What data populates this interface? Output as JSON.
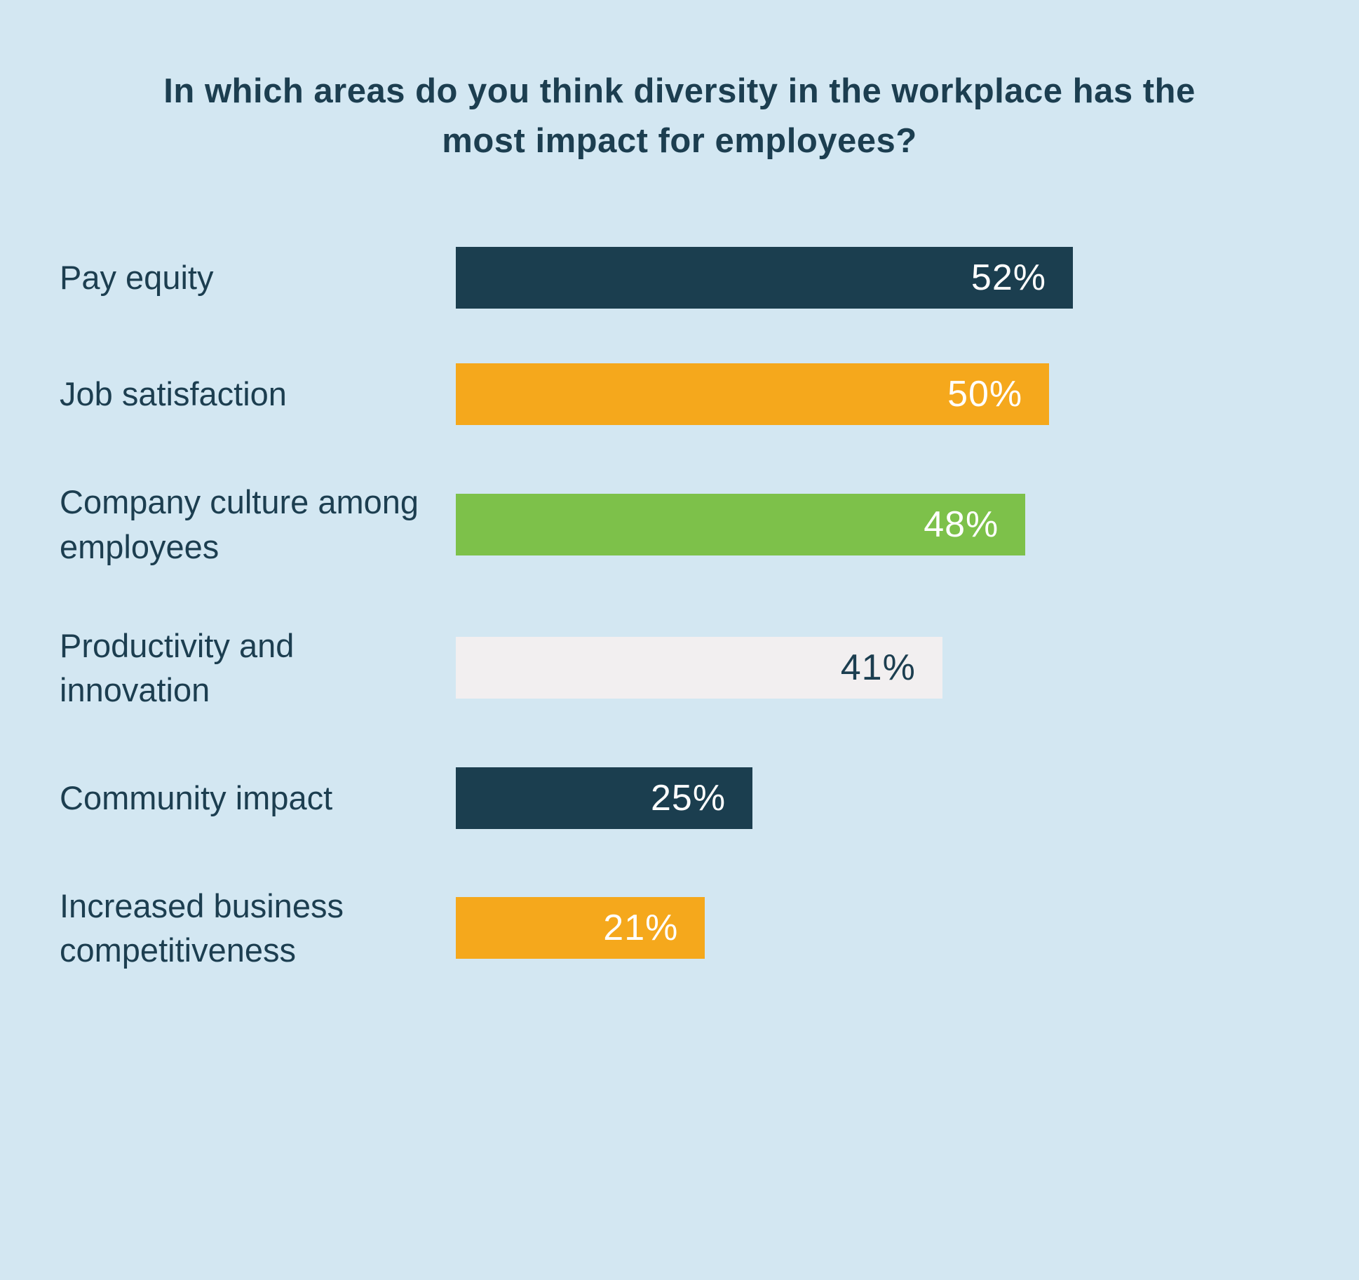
{
  "colors": {
    "background": "#d3e7f2",
    "title_text": "#1c3e50",
    "navy": "#1b3e4f",
    "orange": "#f5a81c",
    "green": "#7dc14a",
    "white_bar": "#f2eff0"
  },
  "chart_data": {
    "type": "bar",
    "orientation": "horizontal",
    "title": "In which areas do you think diversity in the workplace has the most impact for employees?",
    "xlabel": "",
    "ylabel": "",
    "xlim": [
      0,
      52
    ],
    "grid": false,
    "legend": false,
    "categories": [
      "Pay equity",
      "Job satisfaction",
      "Company culture among employees",
      "Productivity and innovation",
      "Community impact",
      "Increased business competitiveness"
    ],
    "values": [
      52,
      50,
      48,
      41,
      25,
      21
    ],
    "value_labels": [
      "52%",
      "50%",
      "48%",
      "41%",
      "25%",
      "21%"
    ],
    "bar_colors": [
      "#1b3e4f",
      "#f5a81c",
      "#7dc14a",
      "#f2eff0",
      "#1b3e4f",
      "#f5a81c"
    ],
    "value_label_colors": [
      "#ffffff",
      "#ffffff",
      "#ffffff",
      "#1c3e50",
      "#ffffff",
      "#ffffff"
    ]
  }
}
